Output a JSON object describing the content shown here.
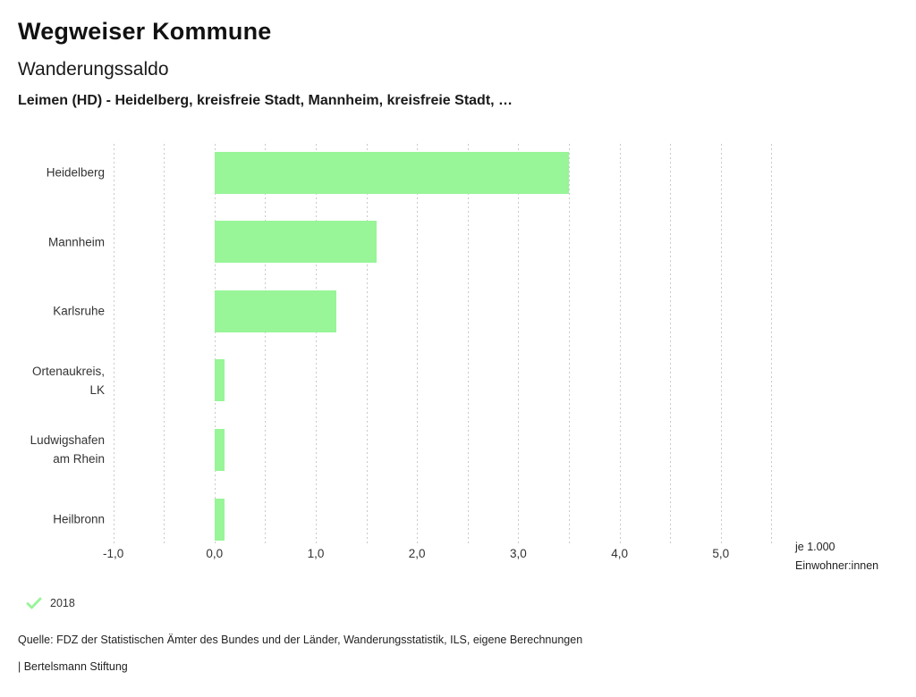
{
  "header": {
    "title": "Wegweiser Kommune"
  },
  "chart_data": {
    "type": "bar",
    "orientation": "horizontal",
    "title": "Wanderungssaldo",
    "subtitle": "Leimen (HD) - Heidelberg, kreisfreie Stadt, Mannheim, kreisfreie Stadt, …",
    "categories": [
      "Heidelberg",
      "Mannheim",
      "Karlsruhe",
      "Ortenaukreis, LK",
      "Ludwigshafen am Rhein",
      "Heilbronn"
    ],
    "category_label_lines": [
      [
        "Heidelberg"
      ],
      [
        "Mannheim"
      ],
      [
        "Karlsruhe"
      ],
      [
        "Ortenaukreis,",
        "LK"
      ],
      [
        "Ludwigshafen",
        "am Rhein"
      ],
      [
        "Heilbronn"
      ]
    ],
    "values": [
      3.5,
      1.6,
      1.2,
      0.1,
      0.1,
      0.1
    ],
    "series": [
      {
        "name": "2018",
        "color": "#98f598",
        "marker": "check"
      }
    ],
    "xlabel": [
      "je 1.000",
      "Einwohner:innen"
    ],
    "ylabel": "",
    "xlim": [
      -1.05,
      5.55
    ],
    "x_ticks": [
      {
        "v": -1,
        "label": "-1,0"
      },
      {
        "v": 0,
        "label": "0,0"
      },
      {
        "v": 1,
        "label": "1,0"
      },
      {
        "v": 2,
        "label": "2,0"
      },
      {
        "v": 3,
        "label": "3,0"
      },
      {
        "v": 4,
        "label": "4,0"
      },
      {
        "v": 5,
        "label": "5,0"
      }
    ],
    "grid": {
      "axis": "x",
      "start": -1.0,
      "end": 5.5,
      "step": 0.5,
      "style": "dashed",
      "color": "#c9c9c9"
    },
    "legend_position": "bottom-left"
  },
  "footer": {
    "source": "Quelle: FDZ der Statistischen Ämter des Bundes und der Länder, Wanderungsstatistik, ILS, eigene Berechnungen",
    "attribution": "| Bertelsmann Stiftung"
  },
  "colors": {
    "bar": "#98f598",
    "grid": "#c9c9c9",
    "title_text": "#111111",
    "body_text": "#333333"
  }
}
